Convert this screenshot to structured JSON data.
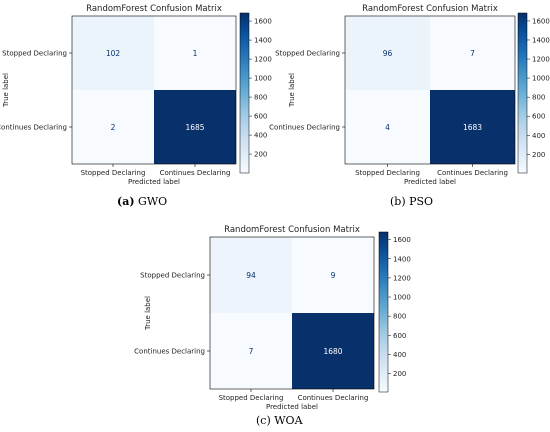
{
  "chart_data": [
    {
      "type": "heatmap",
      "title": "RandomForest Confusion Matrix",
      "xlabel": "Predicted label",
      "ylabel": "True label",
      "x_categories": [
        "Stopped Declaring",
        "Continues Declaring"
      ],
      "y_categories": [
        "Stopped Declaring",
        "Continues Declaring"
      ],
      "values": [
        [
          102,
          1
        ],
        [
          2,
          1685
        ]
      ],
      "colorbar": {
        "ticks": [
          200,
          400,
          600,
          800,
          1000,
          1200,
          1400,
          1600
        ],
        "range": [
          1,
          1685
        ],
        "colormap": "Blues"
      },
      "caption": {
        "label": "(a)",
        "text": "GWO"
      }
    },
    {
      "type": "heatmap",
      "title": "RandomForest Confusion Matrix",
      "xlabel": "Predicted label",
      "ylabel": "True label",
      "x_categories": [
        "Stopped Declaring",
        "Continues Declaring"
      ],
      "y_categories": [
        "Stopped Declaring",
        "Continues Declaring"
      ],
      "values": [
        [
          96,
          7
        ],
        [
          4,
          1683
        ]
      ],
      "colorbar": {
        "ticks": [
          200,
          400,
          600,
          800,
          1000,
          1200,
          1400,
          1600
        ],
        "range": [
          4,
          1683
        ],
        "colormap": "Blues"
      },
      "caption": {
        "label": "(b)",
        "text": "PSO"
      }
    },
    {
      "type": "heatmap",
      "title": "RandomForest Confusion Matrix",
      "xlabel": "Predicted label",
      "ylabel": "True label",
      "x_categories": [
        "Stopped Declaring",
        "Continues Declaring"
      ],
      "y_categories": [
        "Stopped Declaring",
        "Continues Declaring"
      ],
      "values": [
        [
          94,
          9
        ],
        [
          7,
          1680
        ]
      ],
      "colorbar": {
        "ticks": [
          200,
          400,
          600,
          800,
          1000,
          1200,
          1400,
          1600
        ],
        "range": [
          7,
          1680
        ],
        "colormap": "Blues"
      },
      "caption": {
        "label": "(c)",
        "text": "WOA"
      }
    }
  ]
}
